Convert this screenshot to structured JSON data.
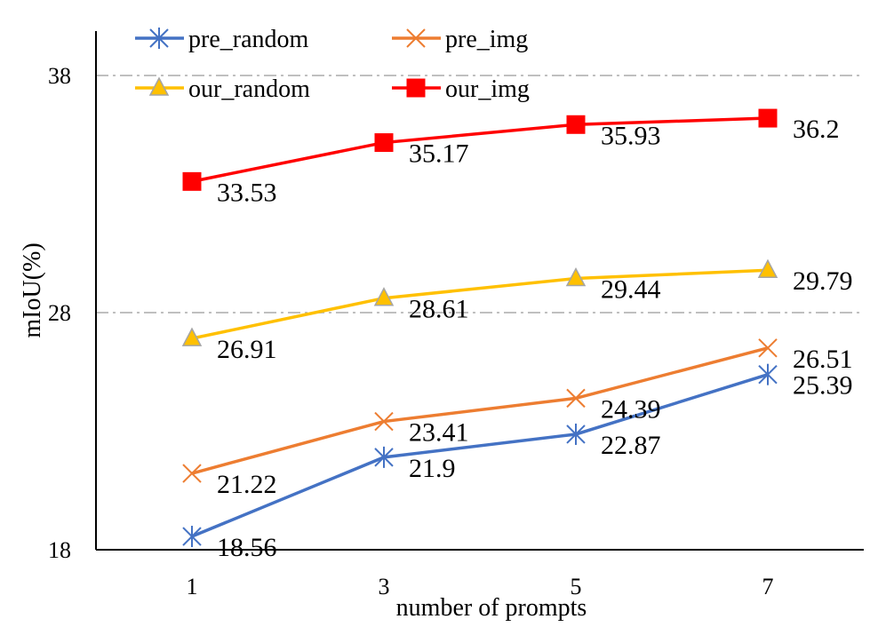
{
  "chart_data": {
    "type": "line",
    "title": "",
    "xlabel": "number of prompts",
    "ylabel": "mIoU(%)",
    "x": [
      1,
      3,
      5,
      7
    ],
    "x_tick_labels": [
      "1",
      "3",
      "5",
      "7"
    ],
    "ylim": [
      18,
      40
    ],
    "y_ticks": [
      18,
      28,
      38
    ],
    "y_tick_labels": [
      "18",
      "28",
      "38"
    ],
    "grid": "dash-dot horizontal at 28 and 38",
    "legend_position": "top",
    "series": [
      {
        "name": "pre_random",
        "color": "#4472c4",
        "marker": "asterisk",
        "values": [
          18.56,
          21.9,
          22.87,
          25.39
        ],
        "labels": [
          "18.56",
          "21.9",
          "22.87",
          "25.39"
        ]
      },
      {
        "name": "pre_img",
        "color": "#ed7d31",
        "marker": "x",
        "values": [
          21.22,
          23.41,
          24.39,
          26.51
        ],
        "labels": [
          "21.22",
          "23.41",
          "24.39",
          "26.51"
        ]
      },
      {
        "name": "our_random",
        "color": "#ffc000",
        "marker": "triangle",
        "values": [
          26.91,
          28.61,
          29.44,
          29.79
        ],
        "labels": [
          "26.91",
          "28.61",
          "29.44",
          "29.79"
        ]
      },
      {
        "name": "our_img",
        "color": "#ff0000",
        "marker": "square",
        "values": [
          33.53,
          35.17,
          35.93,
          36.2
        ],
        "labels": [
          "33.53",
          "35.17",
          "35.93",
          "36.2"
        ]
      }
    ]
  }
}
